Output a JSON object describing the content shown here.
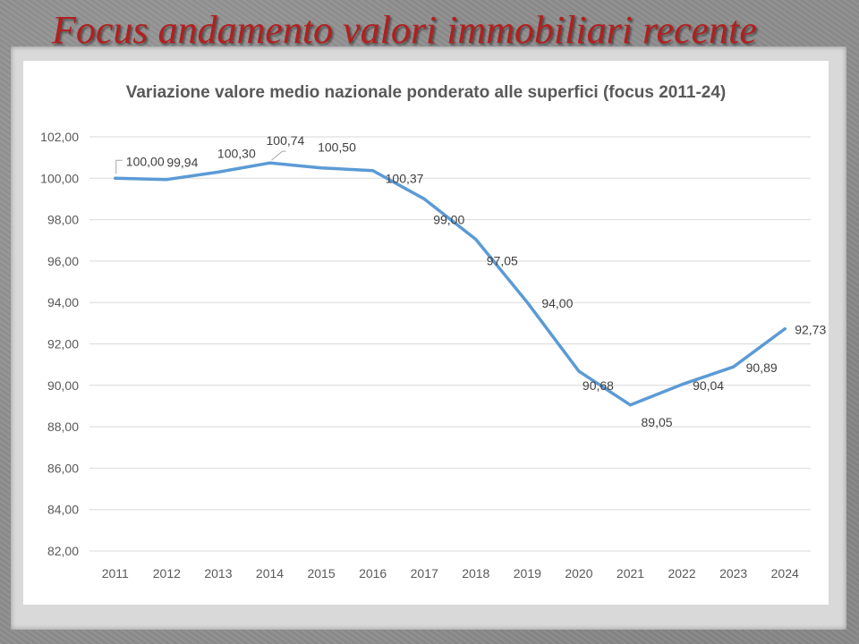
{
  "slide": {
    "title": "Focus andamento valori immobiliari recente"
  },
  "chart_data": {
    "type": "line",
    "title": "Variazione valore medio nazionale ponderato alle superfici (focus 2011-24)",
    "xlabel": "",
    "ylabel": "",
    "categories": [
      "2011",
      "2012",
      "2013",
      "2014",
      "2015",
      "2016",
      "2017",
      "2018",
      "2019",
      "2020",
      "2021",
      "2022",
      "2023",
      "2024"
    ],
    "series": [
      {
        "values": [
          100.0,
          99.94,
          100.3,
          100.74,
          100.5,
          100.37,
          99.0,
          97.05,
          94.0,
          90.68,
          89.05,
          90.04,
          90.89,
          92.73
        ],
        "labels": [
          "100,00",
          "99,94",
          "100,30",
          "100,74",
          "100,50",
          "100,37",
          "99,00",
          "97,05",
          "94,00",
          "90,68",
          "89,05",
          "90,04",
          "90,89",
          "92,73"
        ],
        "color": "#5b9bd5"
      }
    ],
    "ylim": [
      82,
      102
    ],
    "yticks": [
      "82,00",
      "84,00",
      "86,00",
      "88,00",
      "90,00",
      "92,00",
      "94,00",
      "96,00",
      "98,00",
      "100,00",
      "102,00"
    ],
    "grid": true,
    "legend": "none"
  }
}
